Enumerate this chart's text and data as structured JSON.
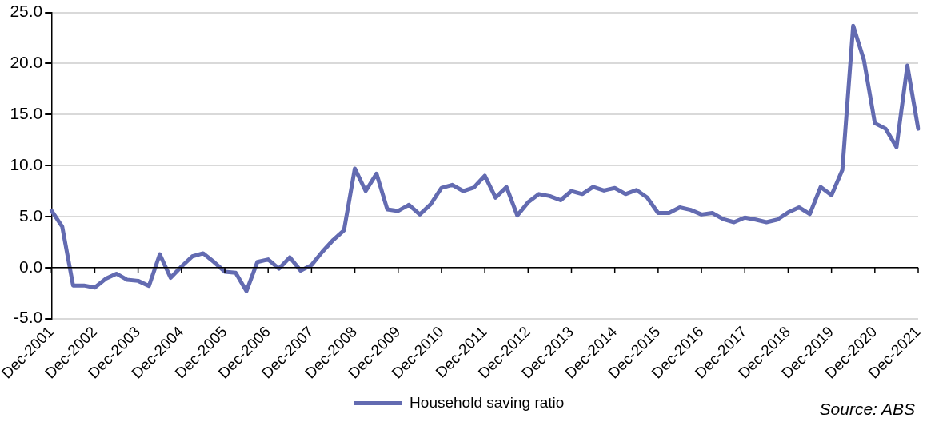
{
  "chart_data": {
    "type": "line",
    "categories": [
      "Dec-2001",
      null,
      null,
      null,
      "Dec-2002",
      null,
      null,
      null,
      "Dec-2003",
      null,
      null,
      null,
      "Dec-2004",
      null,
      null,
      null,
      "Dec-2005",
      null,
      null,
      null,
      "Dec-2006",
      null,
      null,
      null,
      "Dec-2007",
      null,
      null,
      null,
      "Dec-2008",
      null,
      null,
      null,
      "Dec-2009",
      null,
      null,
      null,
      "Dec-2010",
      null,
      null,
      null,
      "Dec-2011",
      null,
      null,
      null,
      "Dec-2012",
      null,
      null,
      null,
      "Dec-2013",
      null,
      null,
      null,
      "Dec-2014",
      null,
      null,
      null,
      "Dec-2015",
      null,
      null,
      null,
      "Dec-2016",
      null,
      null,
      null,
      "Dec-2017",
      null,
      null,
      null,
      "Dec-2018",
      null,
      null,
      null,
      "Dec-2019",
      null,
      null,
      null,
      "Dec-2020",
      null,
      null,
      null,
      "Dec-2021"
    ],
    "series": [
      {
        "name": "Household saving ratio",
        "color": "#636bb1",
        "values": [
          5.6,
          4.0,
          -1.75,
          -1.75,
          -1.95,
          -1.1,
          -0.6,
          -1.2,
          -1.3,
          -1.8,
          1.3,
          -1.0,
          0.1,
          1.1,
          1.4,
          0.55,
          -0.4,
          -0.5,
          -2.3,
          0.55,
          0.8,
          -0.1,
          1.0,
          -0.3,
          0.25,
          1.55,
          2.7,
          3.65,
          9.7,
          7.5,
          9.2,
          5.7,
          5.55,
          6.15,
          5.2,
          6.2,
          7.8,
          8.1,
          7.5,
          7.85,
          9.0,
          6.85,
          7.9,
          5.1,
          6.4,
          7.2,
          7.0,
          6.6,
          7.5,
          7.2,
          7.9,
          7.55,
          7.8,
          7.2,
          7.6,
          6.85,
          5.35,
          5.35,
          5.9,
          5.65,
          5.2,
          5.35,
          4.75,
          4.45,
          4.9,
          4.7,
          4.45,
          4.7,
          5.4,
          5.9,
          5.25,
          7.9,
          7.1,
          9.55,
          23.7,
          20.3,
          14.15,
          13.6,
          11.8,
          19.8,
          13.6
        ]
      }
    ],
    "ylim": [
      -5,
      25
    ],
    "yticks": [
      {
        "value": -5,
        "label": "-5.0"
      },
      {
        "value": 0,
        "label": "0.0"
      },
      {
        "value": 5,
        "label": "5.0"
      },
      {
        "value": 10,
        "label": "10.0"
      },
      {
        "value": 15,
        "label": "15.0"
      },
      {
        "value": 20,
        "label": "20.0"
      },
      {
        "value": 25,
        "label": "25.0"
      }
    ],
    "grid": "y",
    "legend": "bottom",
    "marker": "none",
    "line_style": "solid",
    "annotations": [
      "Source: ABS"
    ]
  }
}
